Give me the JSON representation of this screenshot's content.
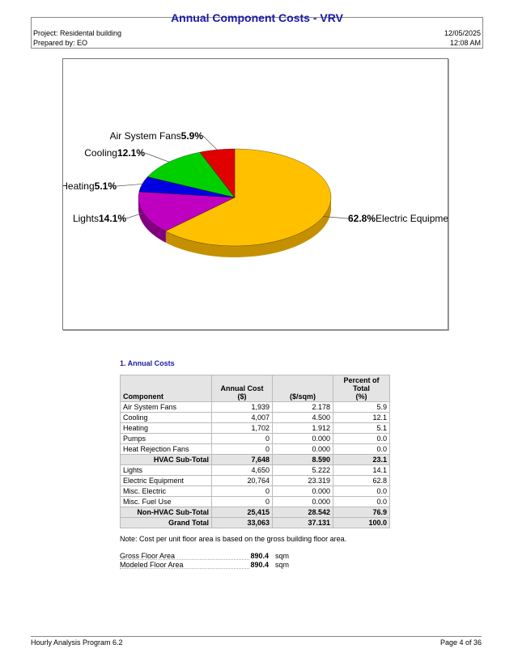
{
  "header": {
    "title": "Annual Component Costs - VRV",
    "project": "Project: Residental building",
    "prepared": "Prepared by: EO",
    "date": "12/05/2025",
    "time": "12:08 AM"
  },
  "chart_data": {
    "type": "pie",
    "style": "3d",
    "start": "12 o'clock, clockwise",
    "slices": [
      {
        "name": "Electric Equipment",
        "label": "Electric Equipmen",
        "pct": "62.8%",
        "value": 62.8,
        "color": "#ffc000",
        "dark": "#c49000",
        "side": "right"
      },
      {
        "name": "Lights",
        "label": "Lights",
        "pct": "14.1%",
        "value": 14.1,
        "color": "#c000c0",
        "dark": "#800080",
        "side": "left"
      },
      {
        "name": "Heating",
        "label": "Heating",
        "pct": "5.1%",
        "value": 5.1,
        "color": "#0000e0",
        "dark": "#000090",
        "side": "left"
      },
      {
        "name": "Cooling",
        "label": "Cooling",
        "pct": "12.1%",
        "value": 12.1,
        "color": "#00d000",
        "dark": "#008800",
        "side": "left"
      },
      {
        "name": "Air System Fans",
        "label": "Air System Fans",
        "pct": "5.9%",
        "value": 5.9,
        "color": "#e00000",
        "dark": "#900000",
        "side": "left"
      }
    ]
  },
  "section": "1. Annual Costs",
  "table": {
    "headers": [
      "Component",
      "Annual Cost\n($)",
      "($/sqm)",
      "Percent of Total\n(%)"
    ],
    "rows": [
      {
        "c": "Air System Fans",
        "a": "1,939",
        "b": "2.178",
        "p": "5.9"
      },
      {
        "c": "Cooling",
        "a": "4,007",
        "b": "4.500",
        "p": "12.1"
      },
      {
        "c": "Heating",
        "a": "1,702",
        "b": "1.912",
        "p": "5.1"
      },
      {
        "c": "Pumps",
        "a": "0",
        "b": "0.000",
        "p": "0.0"
      },
      {
        "c": "Heat Rejection Fans",
        "a": "0",
        "b": "0.000",
        "p": "0.0"
      },
      {
        "c": "HVAC Sub-Total",
        "a": "7,648",
        "b": "8.590",
        "p": "23.1",
        "sub": true
      },
      {
        "c": "Lights",
        "a": "4,650",
        "b": "5.222",
        "p": "14.1"
      },
      {
        "c": "Electric Equipment",
        "a": "20,764",
        "b": "23.319",
        "p": "62.8"
      },
      {
        "c": "Misc. Electric",
        "a": "0",
        "b": "0.000",
        "p": "0.0"
      },
      {
        "c": "Misc. Fuel Use",
        "a": "0",
        "b": "0.000",
        "p": "0.0"
      },
      {
        "c": "Non-HVAC Sub-Total",
        "a": "25,415",
        "b": "28.542",
        "p": "76.9",
        "sub": true
      },
      {
        "c": "Grand Total",
        "a": "33,063",
        "b": "37.131",
        "p": "100.0",
        "sub": true
      }
    ]
  },
  "note": "Note: Cost per unit floor area is based on the gross building floor area.",
  "areas": [
    {
      "label": "Gross Floor Area",
      "value": "890.4",
      "unit": "sqm"
    },
    {
      "label": "Modeled Floor Area",
      "value": "890.4",
      "unit": "sqm"
    }
  ],
  "footer": {
    "program": "Hourly Analysis Program 6.2",
    "page": "Page  4 of 36"
  }
}
